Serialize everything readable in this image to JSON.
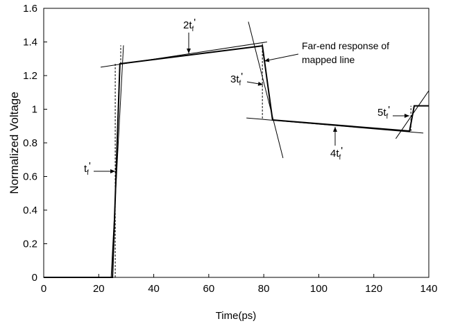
{
  "chart_data": {
    "type": "line",
    "xlabel": "Time(ps)",
    "ylabel": "Normalized Voltage",
    "xlim": [
      0,
      140
    ],
    "xticks": [
      0,
      20,
      40,
      60,
      80,
      100,
      120,
      140
    ],
    "ylim": [
      0,
      1.6
    ],
    "yticks": [
      0,
      0.2,
      0.4,
      0.6,
      0.8,
      1,
      1.2,
      1.4,
      1.6
    ],
    "series": [
      {
        "color": "#000000",
        "width": 2,
        "dashed": false,
        "x": [
          0,
          25,
          27.7,
          79.5,
          83.2,
          133,
          134.7,
          140
        ],
        "values": [
          0,
          0,
          1.27,
          1.377,
          0.936,
          0.87,
          1.02,
          1.02
        ]
      },
      {
        "color": "#000000",
        "width": 1,
        "dashed": false,
        "x": [
          24.5,
          29
        ],
        "values": [
          0,
          1.38
        ]
      },
      {
        "color": "#000000",
        "width": 1,
        "dashed": false,
        "x": [
          20.7,
          81.2
        ],
        "values": [
          1.25,
          1.4
        ]
      },
      {
        "color": "#000000",
        "width": 1,
        "dashed": false,
        "x": [
          74.4,
          87
        ],
        "values": [
          1.52,
          0.71
        ]
      },
      {
        "color": "#000000",
        "width": 1,
        "dashed": false,
        "x": [
          73.7,
          138
        ],
        "values": [
          0.948,
          0.858
        ]
      },
      {
        "color": "#000000",
        "width": 1,
        "dashed": false,
        "x": [
          128,
          140
        ],
        "values": [
          0.825,
          1.11
        ]
      },
      {
        "color": "#000000",
        "width": 1,
        "dashed": true,
        "x": [
          26,
          26
        ],
        "values": [
          0,
          1.27
        ]
      },
      {
        "color": "#000000",
        "width": 1,
        "dashed": true,
        "x": [
          28,
          28
        ],
        "values": [
          1.27,
          1.38
        ]
      },
      {
        "color": "#000000",
        "width": 1,
        "dashed": true,
        "x": [
          79.5,
          79.5
        ],
        "values": [
          1.39,
          0.94
        ]
      },
      {
        "color": "#000000",
        "width": 1,
        "dashed": true,
        "x": [
          133.5,
          133.5
        ],
        "values": [
          0.87,
          1.02
        ]
      }
    ],
    "annotations": [
      {
        "text": "t",
        "sub": "f",
        "prime": "'"
      },
      {
        "text": "2t",
        "sub": "f",
        "prime": "'"
      },
      {
        "text": "3t",
        "sub": "f",
        "prime": "'"
      },
      {
        "text": "4t",
        "sub": "f",
        "prime": "'"
      },
      {
        "text": "5t",
        "sub": "f",
        "prime": "'"
      },
      {
        "lines": [
          "Far-end response of",
          "mapped line"
        ]
      }
    ]
  }
}
